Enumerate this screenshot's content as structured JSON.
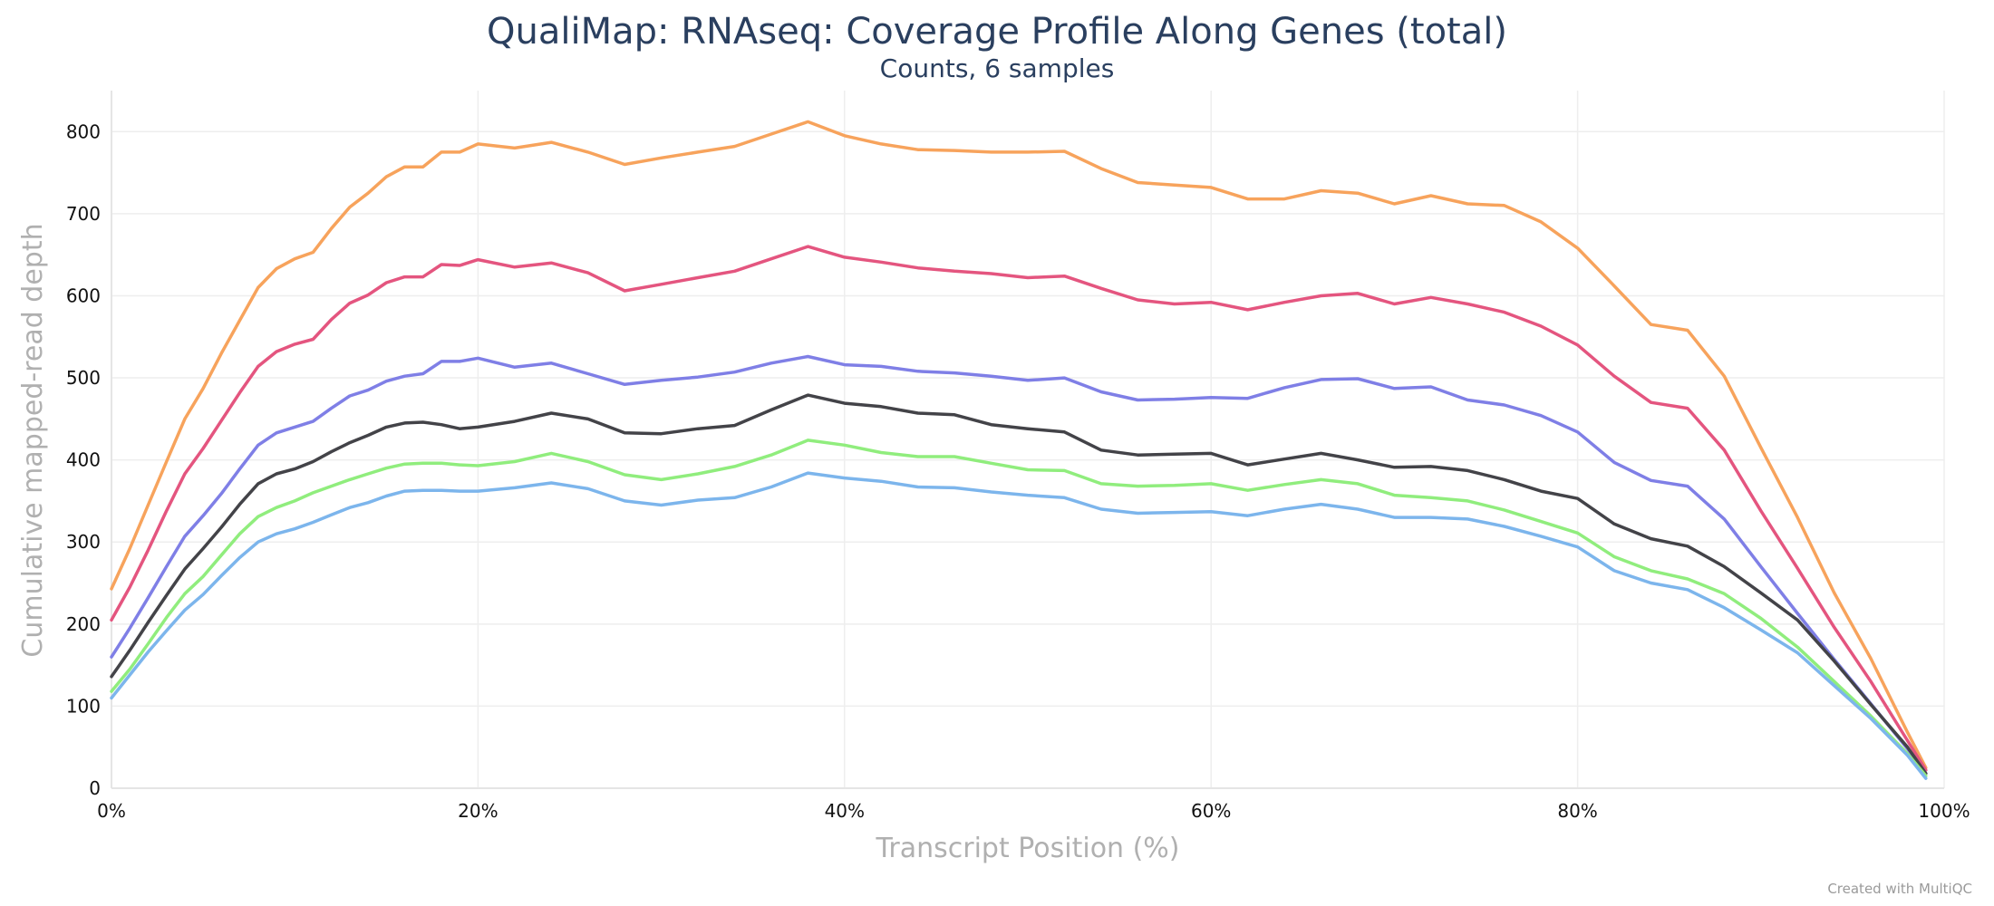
{
  "chart_data": {
    "type": "line",
    "title": "QualiMap: RNAseq: Coverage Profile Along Genes (total)",
    "subtitle": "Counts, 6 samples",
    "xlabel": "Transcript Position (%)",
    "ylabel": "Cumulative mapped-read depth",
    "xlim": [
      0,
      100
    ],
    "ylim": [
      0,
      850
    ],
    "x_ticks": [
      "0%",
      "20%",
      "40%",
      "60%",
      "80%",
      "100%"
    ],
    "x_tick_values": [
      0,
      20,
      40,
      60,
      80,
      100
    ],
    "y_ticks": [
      "0",
      "100",
      "200",
      "300",
      "400",
      "500",
      "600",
      "700",
      "800"
    ],
    "y_tick_values": [
      0,
      100,
      200,
      300,
      400,
      500,
      600,
      700,
      800
    ],
    "grid": true,
    "credit": "Created with MultiQC",
    "x": [
      0,
      1,
      2,
      3,
      4,
      5,
      6,
      7,
      8,
      9,
      10,
      11,
      12,
      13,
      14,
      15,
      16,
      17,
      18,
      19,
      20,
      22,
      24,
      26,
      28,
      30,
      32,
      34,
      36,
      38,
      40,
      42,
      44,
      46,
      48,
      50,
      52,
      54,
      56,
      58,
      60,
      62,
      64,
      66,
      68,
      70,
      72,
      74,
      76,
      78,
      80,
      82,
      84,
      86,
      88,
      90,
      92,
      94,
      96,
      98,
      99
    ],
    "series": [
      {
        "color": "#f7a35c",
        "values": [
          243,
          292,
          345,
          398,
          450,
          487,
          530,
          570,
          610,
          633,
          645,
          653,
          682,
          708,
          725,
          745,
          757,
          757,
          775,
          775,
          785,
          780,
          787,
          775,
          760,
          768,
          775,
          782,
          797,
          812,
          795,
          785,
          778,
          777,
          775,
          775,
          776,
          755,
          738,
          735,
          732,
          718,
          718,
          728,
          725,
          712,
          722,
          712,
          710,
          690,
          658,
          612,
          565,
          558,
          502,
          415,
          330,
          238,
          158,
          68,
          25
        ]
      },
      {
        "color": "#e4557f",
        "values": [
          205,
          245,
          290,
          338,
          383,
          414,
          448,
          482,
          514,
          532,
          541,
          547,
          571,
          591,
          601,
          616,
          623,
          623,
          638,
          637,
          644,
          635,
          640,
          628,
          606,
          614,
          622,
          630,
          645,
          660,
          647,
          641,
          634,
          630,
          627,
          622,
          624,
          609,
          595,
          590,
          592,
          583,
          592,
          600,
          603,
          590,
          598,
          590,
          580,
          563,
          540,
          502,
          470,
          463,
          412,
          338,
          268,
          196,
          130,
          58,
          22
        ]
      },
      {
        "color": "#7f7fe6",
        "values": [
          160,
          195,
          232,
          270,
          307,
          332,
          359,
          389,
          418,
          433,
          440,
          447,
          463,
          478,
          485,
          496,
          502,
          505,
          520,
          520,
          524,
          513,
          518,
          505,
          492,
          497,
          501,
          507,
          518,
          526,
          516,
          514,
          508,
          506,
          502,
          497,
          500,
          483,
          473,
          474,
          476,
          475,
          488,
          498,
          499,
          487,
          489,
          473,
          467,
          454,
          434,
          397,
          375,
          368,
          328,
          270,
          213,
          157,
          103,
          48,
          18
        ]
      },
      {
        "color": "#434348",
        "values": [
          136,
          168,
          202,
          235,
          267,
          292,
          318,
          346,
          371,
          383,
          389,
          398,
          410,
          421,
          430,
          440,
          445,
          446,
          443,
          438,
          440,
          447,
          457,
          450,
          433,
          432,
          438,
          442,
          461,
          479,
          469,
          465,
          457,
          455,
          443,
          438,
          434,
          412,
          406,
          407,
          408,
          394,
          401,
          408,
          400,
          391,
          392,
          387,
          376,
          362,
          353,
          322,
          304,
          295,
          270,
          238,
          205,
          155,
          102,
          50,
          18
        ]
      },
      {
        "color": "#90ed7d",
        "values": [
          118,
          145,
          176,
          208,
          237,
          258,
          284,
          310,
          331,
          342,
          350,
          360,
          368,
          376,
          383,
          390,
          395,
          396,
          396,
          394,
          393,
          398,
          408,
          398,
          382,
          376,
          383,
          392,
          406,
          424,
          418,
          409,
          404,
          404,
          396,
          388,
          387,
          371,
          368,
          369,
          371,
          363,
          370,
          376,
          371,
          357,
          354,
          350,
          339,
          325,
          311,
          282,
          265,
          255,
          237,
          207,
          172,
          130,
          88,
          42,
          15
        ]
      },
      {
        "color": "#7cb5ec",
        "values": [
          110,
          138,
          166,
          192,
          217,
          236,
          259,
          281,
          300,
          310,
          316,
          324,
          333,
          342,
          348,
          356,
          362,
          363,
          363,
          362,
          362,
          366,
          372,
          365,
          350,
          345,
          351,
          354,
          367,
          384,
          378,
          374,
          367,
          366,
          361,
          357,
          354,
          340,
          335,
          336,
          337,
          332,
          340,
          346,
          340,
          330,
          330,
          328,
          319,
          307,
          294,
          265,
          250,
          242,
          220,
          193,
          165,
          125,
          85,
          40,
          12
        ]
      }
    ]
  }
}
